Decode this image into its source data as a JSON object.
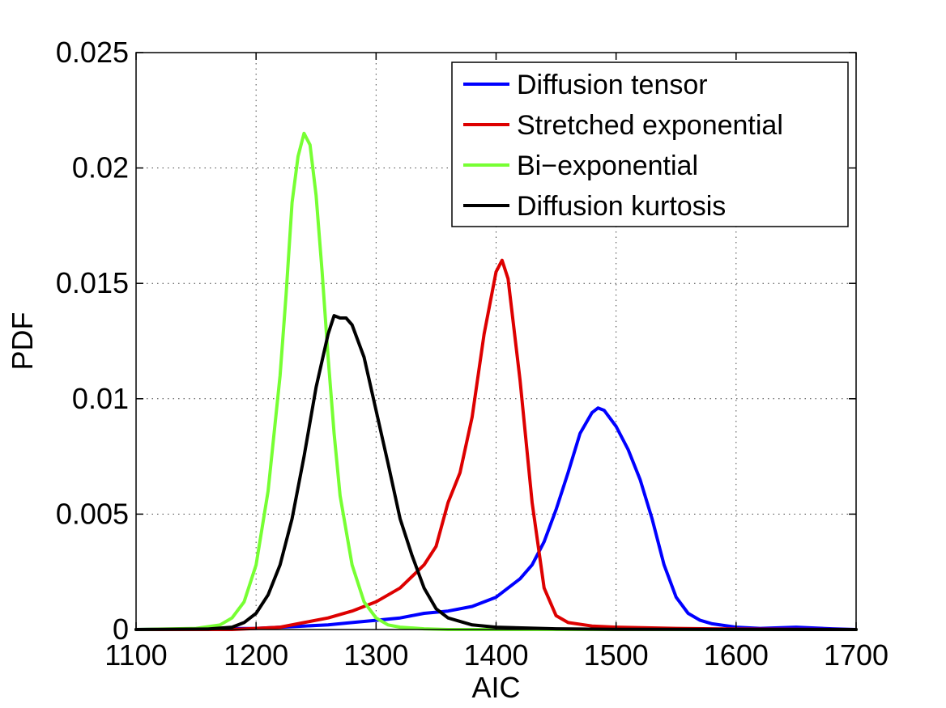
{
  "chart_data": {
    "type": "line",
    "xlabel": "AIC",
    "ylabel": "PDF",
    "xlim": [
      1100,
      1700
    ],
    "ylim": [
      0,
      0.025
    ],
    "xticks": [
      1100,
      1200,
      1300,
      1400,
      1500,
      1600,
      1700
    ],
    "xtick_labels": [
      "1100",
      "1200",
      "1300",
      "1400",
      "1500",
      "1600",
      "1700"
    ],
    "yticks": [
      0,
      0.005,
      0.01,
      0.015,
      0.02,
      0.025
    ],
    "ytick_labels": [
      "0",
      "0.005",
      "0.01",
      "0.015",
      "0.02",
      "0.025"
    ],
    "grid": true,
    "legend_position": "top-right",
    "series": [
      {
        "name": "Diffusion tensor",
        "color": "#0000ff",
        "x": [
          1100,
          1200,
          1220,
          1240,
          1260,
          1280,
          1300,
          1320,
          1340,
          1360,
          1380,
          1400,
          1420,
          1430,
          1440,
          1450,
          1460,
          1470,
          1480,
          1485,
          1490,
          1500,
          1510,
          1520,
          1530,
          1540,
          1550,
          1560,
          1570,
          1580,
          1600,
          1620,
          1650,
          1680,
          1700
        ],
        "y": [
          0,
          5e-05,
          0.0001,
          0.00015,
          0.0002,
          0.0003,
          0.0004,
          0.0005,
          0.0007,
          0.0008,
          0.001,
          0.0014,
          0.0022,
          0.0028,
          0.0038,
          0.0052,
          0.0068,
          0.0085,
          0.0094,
          0.0096,
          0.0095,
          0.0088,
          0.0078,
          0.0065,
          0.0048,
          0.0028,
          0.0014,
          0.0007,
          0.0004,
          0.00025,
          0.0001,
          5e-05,
          0.0001,
          3e-05,
          0
        ]
      },
      {
        "name": "Stretched exponential",
        "color": "#dd0000",
        "x": [
          1100,
          1180,
          1200,
          1220,
          1240,
          1260,
          1280,
          1300,
          1320,
          1340,
          1350,
          1360,
          1370,
          1380,
          1390,
          1400,
          1405,
          1410,
          1420,
          1430,
          1440,
          1450,
          1460,
          1480,
          1500,
          1550,
          1600,
          1650,
          1700
        ],
        "y": [
          0,
          0,
          5e-05,
          0.0001,
          0.0003,
          0.0005,
          0.0008,
          0.0012,
          0.0018,
          0.0028,
          0.0036,
          0.0055,
          0.0068,
          0.0092,
          0.0128,
          0.0155,
          0.016,
          0.0152,
          0.0108,
          0.0055,
          0.0018,
          0.0006,
          0.0003,
          0.00015,
          0.0001,
          5e-05,
          2e-05,
          1e-05,
          0
        ]
      },
      {
        "name": "Bi−exponential",
        "color": "#77ff33",
        "x": [
          1100,
          1150,
          1170,
          1180,
          1190,
          1200,
          1210,
          1220,
          1225,
          1230,
          1235,
          1240,
          1245,
          1250,
          1255,
          1260,
          1265,
          1270,
          1280,
          1290,
          1300,
          1310,
          1320,
          1340,
          1360,
          1700
        ],
        "y": [
          0,
          5e-05,
          0.0002,
          0.0005,
          0.0012,
          0.0028,
          0.006,
          0.011,
          0.0145,
          0.0185,
          0.0205,
          0.0215,
          0.021,
          0.0188,
          0.0155,
          0.0118,
          0.0085,
          0.0058,
          0.0028,
          0.0012,
          0.0005,
          0.0002,
          0.0001,
          3e-05,
          0,
          0
        ]
      },
      {
        "name": "Diffusion kurtosis",
        "color": "#000000",
        "x": [
          1100,
          1160,
          1180,
          1190,
          1200,
          1210,
          1220,
          1230,
          1240,
          1250,
          1260,
          1265,
          1270,
          1275,
          1280,
          1290,
          1300,
          1310,
          1320,
          1330,
          1340,
          1350,
          1360,
          1380,
          1400,
          1450,
          1500,
          1700
        ],
        "y": [
          0,
          2e-05,
          0.0001,
          0.0003,
          0.0007,
          0.0015,
          0.0028,
          0.0048,
          0.0075,
          0.0105,
          0.0128,
          0.0136,
          0.0135,
          0.0135,
          0.0132,
          0.0118,
          0.0095,
          0.0072,
          0.0048,
          0.0032,
          0.0018,
          0.0009,
          0.0005,
          0.0002,
          0.0001,
          3e-05,
          1e-05,
          0
        ]
      }
    ]
  }
}
